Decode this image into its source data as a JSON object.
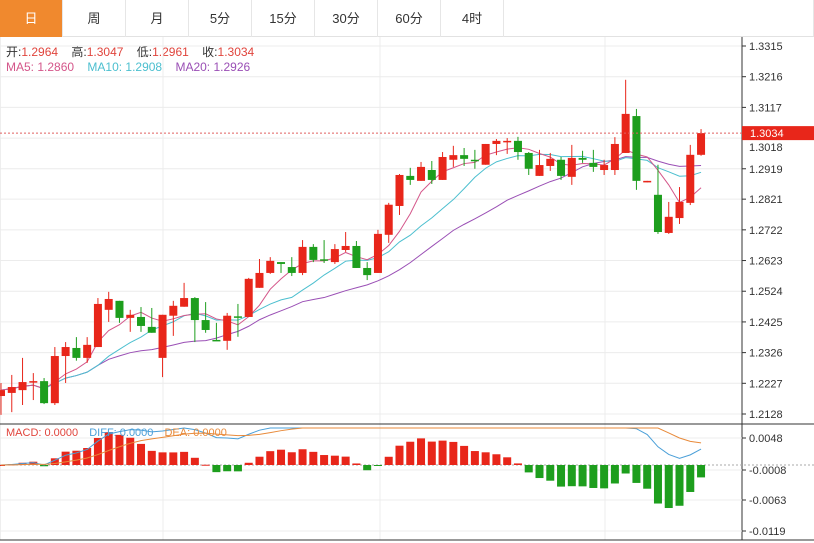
{
  "tabs": [
    "日",
    "周",
    "月",
    "5分",
    "15分",
    "30分",
    "60分",
    "4时"
  ],
  "active_tab": 0,
  "ohlc": {
    "open_label": "开:",
    "open": "1.2964",
    "high_label": "高:",
    "high": "1.3047",
    "low_label": "低:",
    "low": "1.2961",
    "close_label": "收:",
    "close": "1.3034"
  },
  "ma": {
    "ma5": "MA5: 1.2860",
    "ma10": "MA10: 1.2908",
    "ma20": "MA20: 1.2926"
  },
  "macd_info": {
    "macd": "MACD: 0.0000",
    "diff": "DIFF: 0.0000",
    "dea": "DEA: 0.0000"
  },
  "colors": {
    "up": "#e8261a",
    "down": "#1d9e1d",
    "ma5": "#d4568a",
    "ma10": "#4cbfcf",
    "ma20": "#9a4fb5",
    "accent": "#f0892e",
    "diff": "#4a9fd8",
    "dea": "#e88a3a"
  },
  "chart_data": {
    "type": "candlestick",
    "current_price": "1.3034",
    "price_ticks": [
      "1.3315",
      "1.3216",
      "1.3117",
      "1.3018",
      "1.2919",
      "1.2821",
      "1.2722",
      "1.2623",
      "1.2524",
      "1.2425",
      "1.2326",
      "1.2227",
      "1.2128"
    ],
    "macd_ticks": [
      "0.0048",
      "-0.0008",
      "-0.0063",
      "-0.0119"
    ],
    "candles_ochl": [
      [
        1.2186,
        1.2205,
        1.2228,
        1.2125
      ],
      [
        1.2196,
        1.2215,
        1.2254,
        1.2134
      ],
      [
        1.2205,
        1.2231,
        1.2309,
        1.2157
      ],
      [
        1.2231,
        1.2234,
        1.226,
        1.2173
      ],
      [
        1.2234,
        1.2163,
        1.2244,
        1.216
      ],
      [
        1.2163,
        1.2315,
        1.2344,
        1.2157
      ],
      [
        1.2315,
        1.2344,
        1.236,
        1.2228
      ],
      [
        1.2341,
        1.2309,
        1.2376,
        1.23
      ],
      [
        1.2309,
        1.2351,
        1.2376,
        1.2293
      ],
      [
        1.2344,
        1.2483,
        1.2502,
        1.2344
      ],
      [
        1.2464,
        1.2499,
        1.2522,
        1.2425
      ],
      [
        1.2493,
        1.2438,
        1.2493,
        1.2422
      ],
      [
        1.2438,
        1.2448,
        1.2464,
        1.2393
      ],
      [
        1.2441,
        1.2412,
        1.2473,
        1.2393
      ],
      [
        1.2409,
        1.239,
        1.247,
        1.239
      ],
      [
        1.2309,
        1.2448,
        1.2448,
        1.2247
      ],
      [
        1.2445,
        1.2477,
        1.2493,
        1.238
      ],
      [
        1.2474,
        1.2502,
        1.2551,
        1.2474
      ],
      [
        1.2502,
        1.2431,
        1.2505,
        1.236
      ],
      [
        1.2431,
        1.2399,
        1.2489,
        1.239
      ],
      [
        1.2367,
        1.2364,
        1.2422,
        1.2364
      ],
      [
        1.2364,
        1.2445,
        1.2454,
        1.2335
      ],
      [
        1.2443,
        1.2439,
        1.2483,
        1.2377
      ],
      [
        1.2441,
        1.2564,
        1.2567,
        1.2441
      ],
      [
        1.2535,
        1.2583,
        1.2628,
        1.2535
      ],
      [
        1.2583,
        1.2622,
        1.2634,
        1.258
      ],
      [
        1.2618,
        1.2612,
        1.2618,
        1.2583
      ],
      [
        1.2602,
        1.2583,
        1.2634,
        1.2573
      ],
      [
        1.2583,
        1.2667,
        1.2689,
        1.2576
      ],
      [
        1.2667,
        1.2625,
        1.2676,
        1.2618
      ],
      [
        1.2627,
        1.2623,
        1.2689,
        1.2615
      ],
      [
        1.2618,
        1.266,
        1.2676,
        1.2612
      ],
      [
        1.2657,
        1.267,
        1.2715,
        1.2651
      ],
      [
        1.267,
        1.2599,
        1.2686,
        1.2599
      ],
      [
        1.2599,
        1.2576,
        1.2618,
        1.256
      ],
      [
        1.2583,
        1.2709,
        1.2722,
        1.2583
      ],
      [
        1.2706,
        1.2803,
        1.2809,
        1.268
      ],
      [
        1.2799,
        1.2899,
        1.2902,
        1.277
      ],
      [
        1.2896,
        1.2883,
        1.2922,
        1.2867
      ],
      [
        1.288,
        1.2925,
        1.2941,
        1.288
      ],
      [
        1.2915,
        1.2883,
        1.2944,
        1.287
      ],
      [
        1.2883,
        1.2957,
        1.2973,
        1.2883
      ],
      [
        1.2948,
        1.2963,
        1.2993,
        1.2925
      ],
      [
        1.2963,
        1.2951,
        1.2986,
        1.2928
      ],
      [
        1.2948,
        1.2944,
        1.298,
        1.2919
      ],
      [
        1.2932,
        1.2999,
        1.2999,
        1.2932
      ],
      [
        1.2999,
        1.3009,
        1.3015,
        1.2963
      ],
      [
        1.3006,
        1.3009,
        1.3018,
        1.2967
      ],
      [
        1.3009,
        1.2973,
        1.3022,
        1.2948
      ],
      [
        1.297,
        1.2919,
        1.2973,
        1.2899
      ],
      [
        1.2896,
        1.2931,
        1.298,
        1.2896
      ],
      [
        1.2928,
        1.2951,
        1.297,
        1.2912
      ],
      [
        1.2948,
        1.2896,
        1.2957,
        1.2883
      ],
      [
        1.2893,
        1.2954,
        1.2996,
        1.2867
      ],
      [
        1.2954,
        1.2948,
        1.2977,
        1.2938
      ],
      [
        1.2938,
        1.2925,
        1.298,
        1.2909
      ],
      [
        1.2915,
        1.2931,
        1.2948,
        1.2899
      ],
      [
        1.2915,
        1.2999,
        1.3021,
        1.2899
      ],
      [
        1.297,
        1.3096,
        1.3206,
        1.297
      ],
      [
        1.3089,
        1.288,
        1.3112,
        1.2851
      ],
      [
        1.2875,
        1.288,
        1.288,
        1.2875
      ],
      [
        1.2835,
        1.2715,
        1.2932,
        1.2709
      ],
      [
        1.2712,
        1.2764,
        1.2812,
        1.2709
      ],
      [
        1.276,
        1.2812,
        1.286,
        1.2741
      ],
      [
        1.2809,
        1.2964,
        1.2996,
        1.2802
      ],
      [
        1.2964,
        1.3034,
        1.3047,
        1.2961
      ]
    ]
  }
}
